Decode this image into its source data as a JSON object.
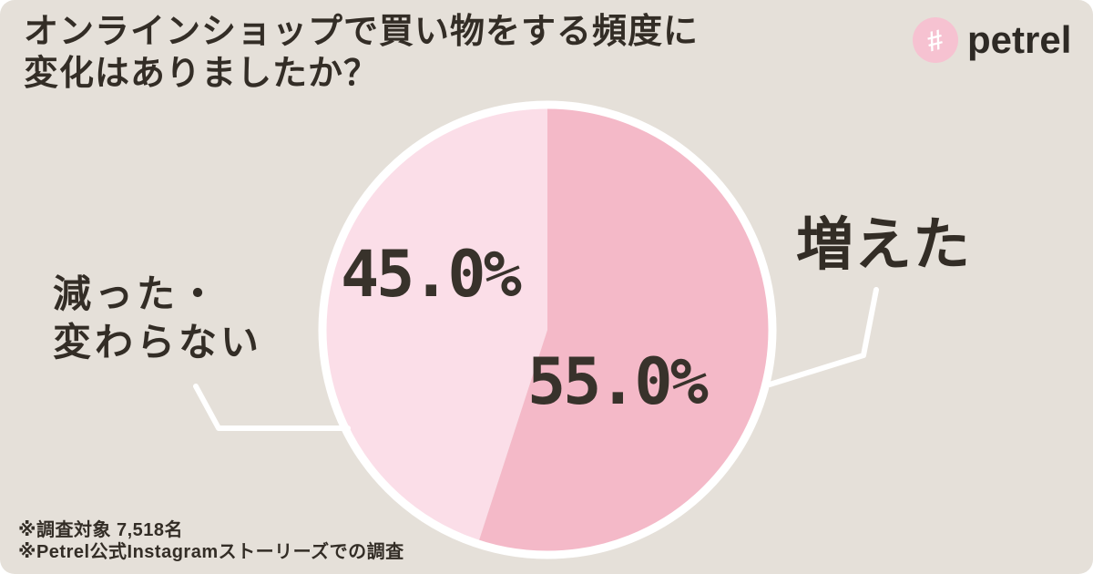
{
  "card": {
    "background_color": "#e5e0d9",
    "title_line1": "オンラインショップで買い物をする頻度に",
    "title_line2": "変化はありましたか？"
  },
  "logo": {
    "symbol": "#",
    "wordmark": "petrel",
    "circle_color": "#f6c2d1",
    "symbol_color": "#ffffff",
    "wordmark_color": "#2e2a25"
  },
  "chart_data": {
    "type": "pie",
    "title": "オンラインショップで買い物をする頻度に変化はありましたか？",
    "start_angle_deg": -90,
    "direction": "clockwise",
    "ring_color": "#ffffff",
    "leader_line_color": "#ffffff",
    "slices": [
      {
        "label": "増えた",
        "value": 55.0,
        "display": "55.0%",
        "color": "#f4b9c8"
      },
      {
        "label": "減った・変わらない",
        "value": 45.0,
        "display": "45.0%",
        "color": "#fbdee8"
      }
    ]
  },
  "labels": {
    "decreased_line1": "減った・",
    "decreased_line2": "変わらない"
  },
  "footnotes": {
    "line1": "※調査対象 7,518名",
    "line2": "※Petrel公式Instagramストーリーズでの調査"
  }
}
